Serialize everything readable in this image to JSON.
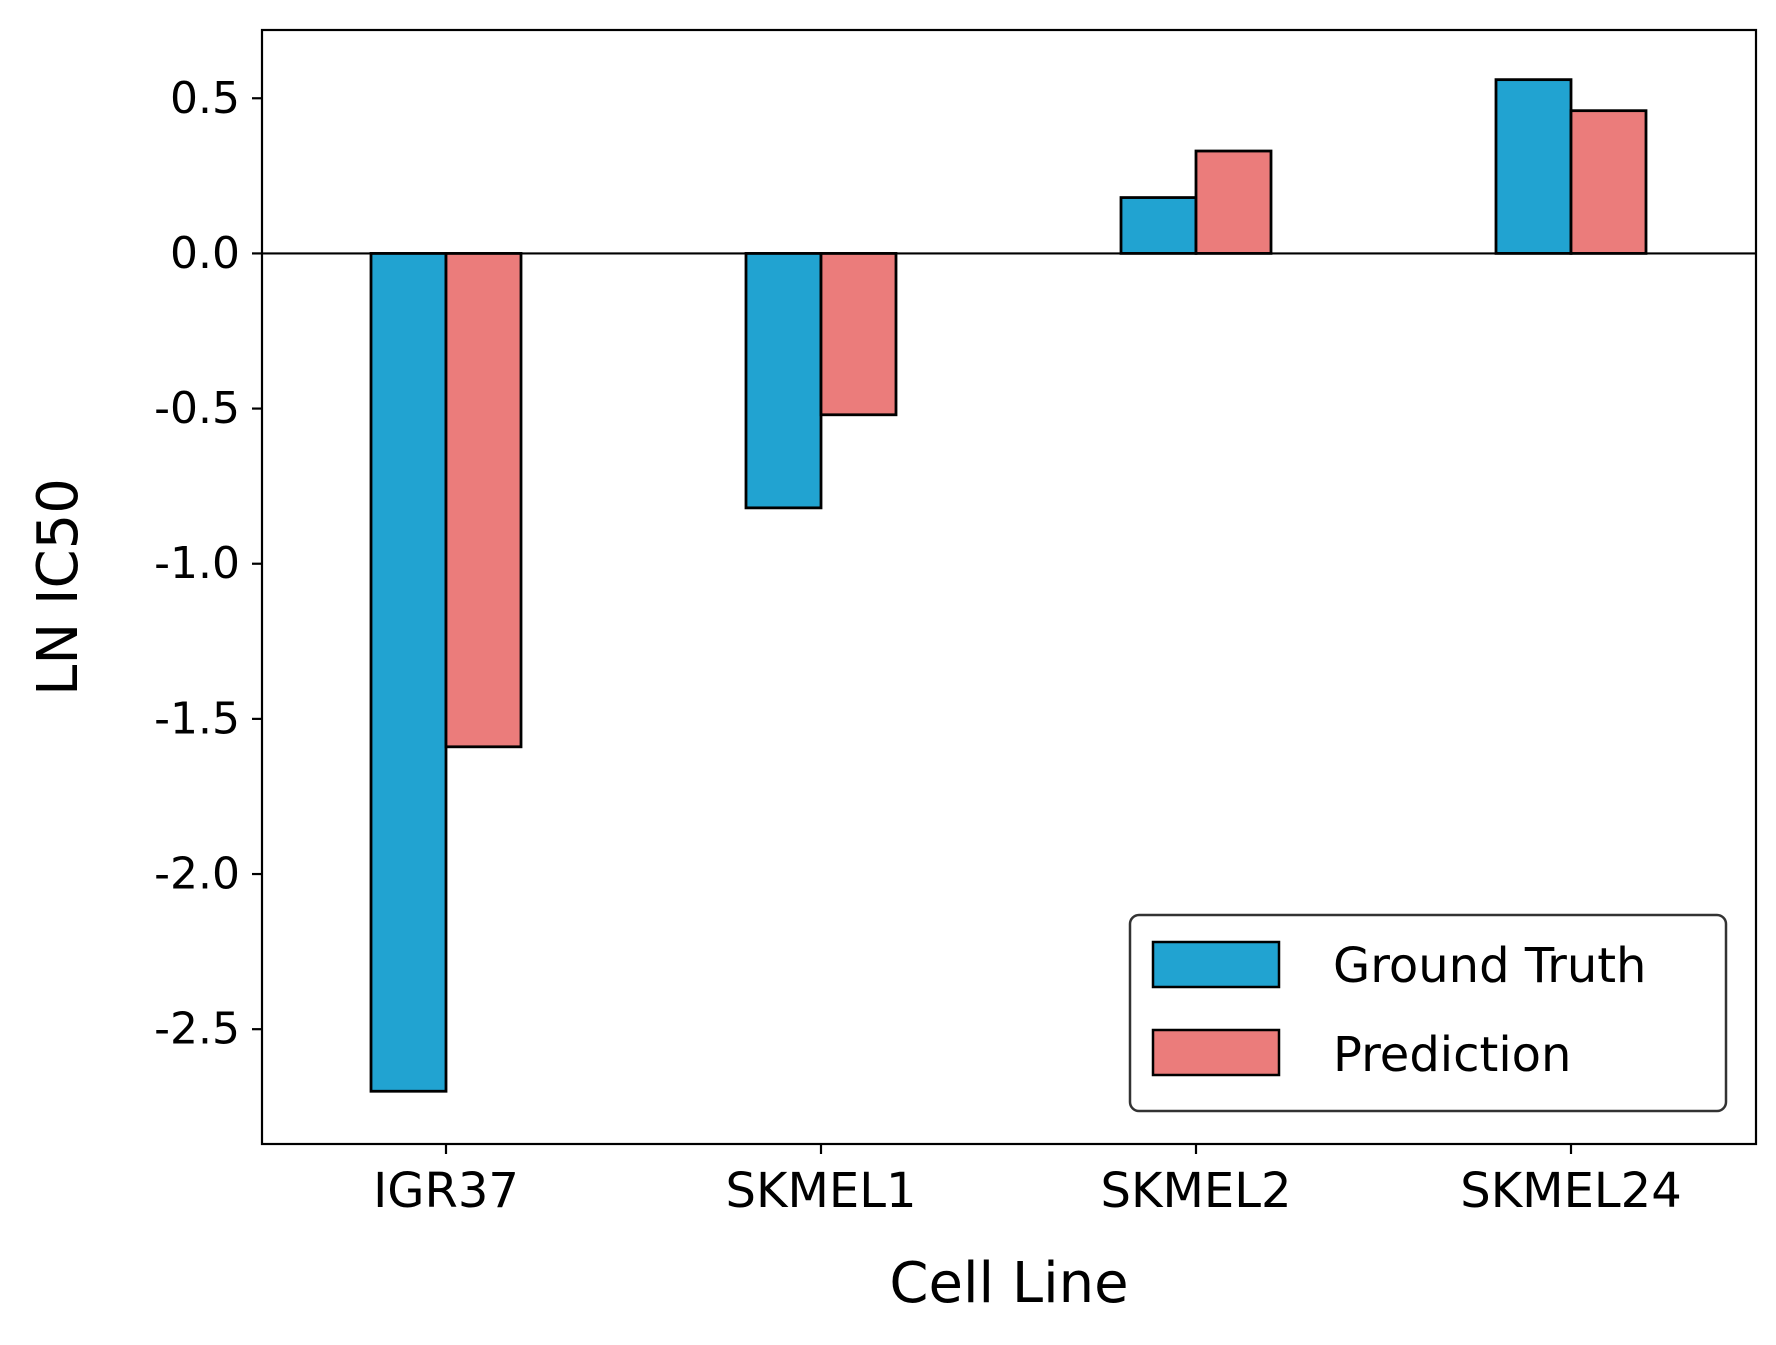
{
  "chart_data": {
    "type": "bar",
    "categories": [
      "IGR37",
      "SKMEL1",
      "SKMEL2",
      "SKMEL24"
    ],
    "series": [
      {
        "name": "Ground Truth",
        "values": [
          -2.7,
          -0.82,
          0.18,
          0.56
        ],
        "color": "#21a3d1"
      },
      {
        "name": "Prediction",
        "values": [
          -1.59,
          -0.52,
          0.33,
          0.46
        ],
        "color": "#eb7c7b"
      }
    ],
    "title": "",
    "xlabel": "Cell Line",
    "ylabel": "LN IC50",
    "ylim": [
      -2.87,
      0.72
    ],
    "yticks": [
      0.5,
      0.0,
      -0.5,
      -1.0,
      -1.5,
      -2.0,
      -2.5
    ],
    "ytick_labels": [
      "0.5",
      "0.0",
      "-0.5",
      "-1.0",
      "-1.5",
      "-2.0",
      "-2.5"
    ],
    "grid": false,
    "zero_line": true,
    "legend_position": "lower-right"
  }
}
